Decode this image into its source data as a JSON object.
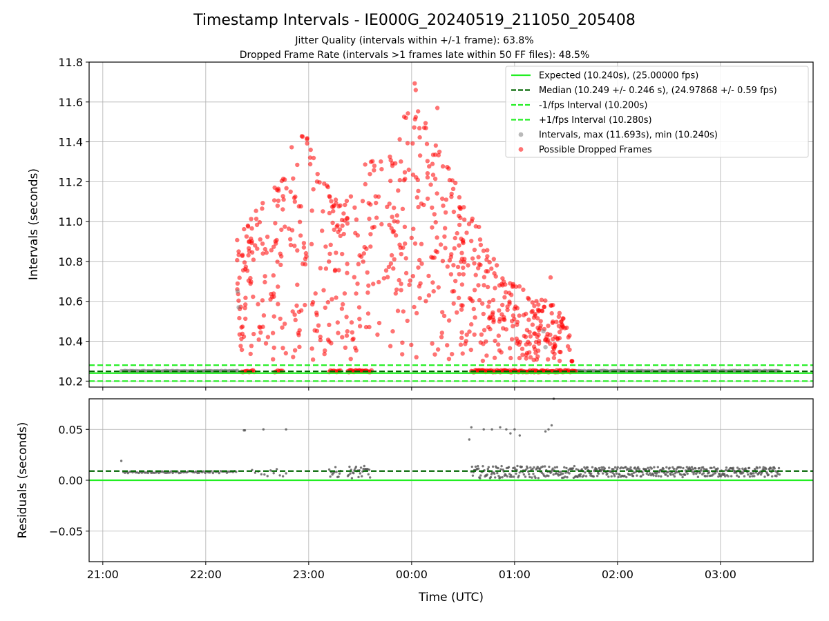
{
  "chart_data": {
    "type": "scatter",
    "title": "Timestamp Intervals - IE000G_20240519_211050_205408",
    "subtitle_lines": [
      "Jitter Quality (intervals within +/-1 frame): 63.8%",
      "Dropped Frame Rate (intervals >1 frames late within 50 FF files): 48.5%"
    ],
    "x_ticks": [
      "21:00",
      "22:00",
      "23:00",
      "00:00",
      "01:00",
      "02:00",
      "03:00"
    ],
    "xlabel": "Time (UTC)",
    "top_panel": {
      "ylabel": "Intervals (seconds)",
      "ylim": [
        10.17,
        11.8
      ],
      "y_ticks": [
        "10.2",
        "10.4",
        "10.6",
        "10.8",
        "11.0",
        "11.2",
        "11.4",
        "11.6",
        "11.8"
      ],
      "lines": [
        {
          "name": "Expected (10.240s), (25.00000 fps)",
          "y": 10.24,
          "color": "#22ee22",
          "style": "solid"
        },
        {
          "name": "Median (10.249 +/- 0.246 s), (24.97868 +/- 0.59 fps)",
          "y": 10.249,
          "color": "#006400",
          "style": "dashed"
        },
        {
          "name": "-1/fps Interval (10.200s)",
          "y": 10.2,
          "color": "#22ee22",
          "style": "dashed"
        },
        {
          "name": "+1/fps Interval (10.280s)",
          "y": 10.28,
          "color": "#22ee22",
          "style": "dashed"
        }
      ],
      "scatter_series": [
        {
          "name": "Intervals, max (11.693s), min (10.240s)",
          "color": "#808080"
        },
        {
          "name": "Possible Dropped Frames",
          "color": "#ff0000"
        }
      ],
      "legend": "top-right"
    },
    "bottom_panel": {
      "ylabel": "Residuals (seconds)",
      "ylim": [
        -0.08,
        0.08
      ],
      "y_ticks": [
        "−0.05",
        "0.00",
        "0.05"
      ],
      "lines": [
        {
          "y": 0.0,
          "color": "#22ee22",
          "style": "solid"
        },
        {
          "y": 0.009,
          "color": "#006400",
          "style": "dashed"
        }
      ]
    },
    "grid": true,
    "colors": {
      "accent_green": "#22ee22",
      "median_green": "#006400",
      "interval_gray": "#808080",
      "dropped_red": "#ff0000"
    }
  }
}
